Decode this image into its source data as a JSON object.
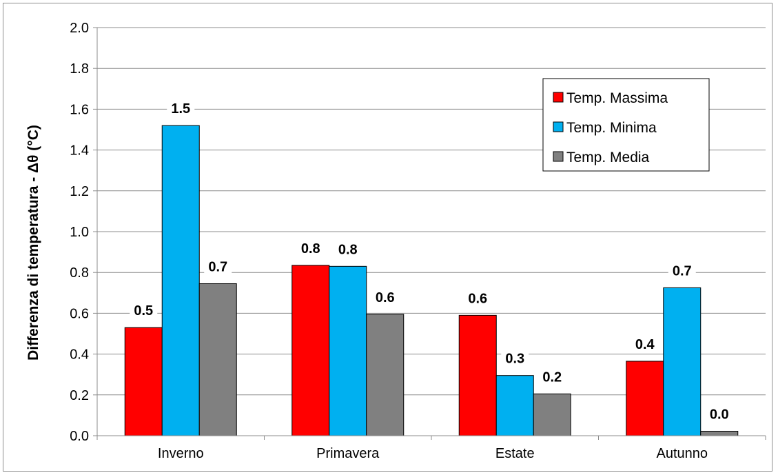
{
  "chart_data": {
    "type": "bar",
    "title": "",
    "xlabel": "",
    "ylabel": "Differenza di temperatura - Δθ (°C)",
    "ylim": [
      0,
      2.0
    ],
    "ytick_step": 0.2,
    "grid": true,
    "legend_position": "top-right",
    "categories": [
      "Inverno",
      "Primavera",
      "Estate",
      "Autunno"
    ],
    "series": [
      {
        "name": "Temp. Massima",
        "color": "#ff0000",
        "values": [
          0.53,
          0.835,
          0.59,
          0.365
        ],
        "labels": [
          "0.5",
          "0.8",
          "0.6",
          "0.4"
        ]
      },
      {
        "name": "Temp. Minima",
        "color": "#00b0f0",
        "values": [
          1.52,
          0.83,
          0.295,
          0.725
        ],
        "labels": [
          "1.5",
          "0.8",
          "0.3",
          "0.7"
        ]
      },
      {
        "name": "Temp. Media",
        "color": "#808080",
        "values": [
          0.745,
          0.595,
          0.205,
          0.022
        ],
        "labels": [
          "0.7",
          "0.6",
          "0.2",
          "0.0"
        ]
      }
    ]
  }
}
